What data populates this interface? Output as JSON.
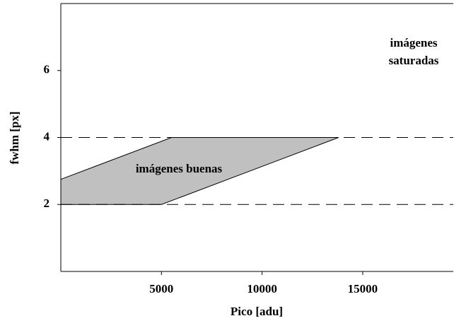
{
  "chart_data": {
    "type": "region",
    "x_label": "Pico [adu]",
    "y_label": "fwhm [px]",
    "x": [
      0,
      5500,
      13800,
      5000,
      0
    ],
    "values": [
      2.75,
      4,
      4,
      2,
      2
    ],
    "color": "#c0c0c0",
    "hlines": [
      2,
      4
    ],
    "annotations": [
      "imágenes buenas",
      "imágenes",
      "saturadas"
    ],
    "xlim": [
      0,
      19500
    ],
    "ylim": [
      0,
      8
    ],
    "xticks": [
      5000,
      10000,
      15000
    ],
    "yticks": [
      2,
      4,
      6
    ]
  }
}
